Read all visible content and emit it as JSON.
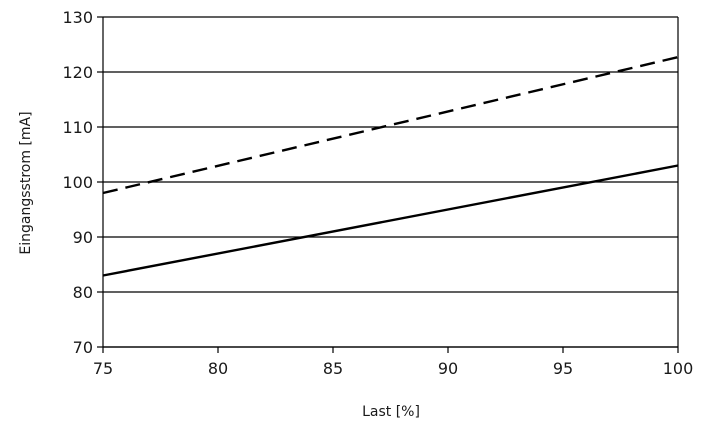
{
  "chart_data": {
    "type": "line",
    "xlabel": "Last [%]",
    "ylabel": "Eingangsstrom [mA]",
    "xlim": [
      75,
      100
    ],
    "ylim": [
      70,
      130
    ],
    "x_ticks": [
      75,
      80,
      85,
      90,
      95,
      100
    ],
    "y_ticks": [
      70,
      80,
      90,
      100,
      110,
      120,
      130
    ],
    "grid": "horizontal",
    "legend": "none",
    "series": [
      {
        "style": "solid",
        "color": "#000000",
        "x": [
          75,
          100
        ],
        "y": [
          83,
          103
        ]
      },
      {
        "style": "dashed",
        "color": "#000000",
        "x": [
          75,
          100
        ],
        "y": [
          98,
          122.7
        ]
      }
    ]
  }
}
